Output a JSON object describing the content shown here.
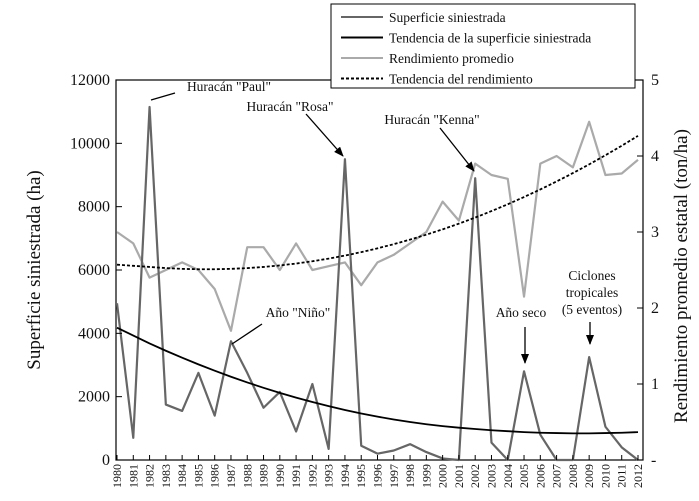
{
  "chart_data": {
    "type": "line",
    "x": [
      1980,
      1981,
      1982,
      1983,
      1984,
      1985,
      1986,
      1987,
      1988,
      1989,
      1990,
      1991,
      1992,
      1993,
      1994,
      1995,
      1996,
      1997,
      1998,
      1999,
      2000,
      2001,
      2002,
      2003,
      2004,
      2005,
      2006,
      2007,
      2008,
      2009,
      2010,
      2011,
      2012
    ],
    "x_tick_labels": [
      "1980",
      "1981",
      "1982",
      "1983",
      "1984",
      "1985",
      "1986",
      "1987",
      "1988",
      "1989",
      "1990",
      "1991",
      "1992",
      "1993",
      "1994",
      "1995",
      "1996",
      "1997",
      "1998",
      "1999",
      "2000",
      "2001",
      "2002",
      "2003",
      "2004",
      "2005",
      "2006",
      "2007",
      "2008",
      "2009",
      "2010",
      "2011",
      "2012"
    ],
    "y_left": {
      "label": "Superficie siniestrada (ha)",
      "lim": [
        0,
        12000
      ],
      "ticks": [
        0,
        2000,
        4000,
        6000,
        8000,
        10000,
        12000
      ],
      "tick_labels": [
        "0",
        "2000",
        "4000",
        "6000",
        "8000",
        "10000",
        "12000"
      ]
    },
    "y_right": {
      "label": "Rendimiento promedio estatal (ton/ha)",
      "lim": [
        0,
        5
      ],
      "ticks": [
        0,
        1,
        2,
        3,
        4,
        5
      ],
      "tick_labels": [
        "-",
        "1",
        "2",
        "3",
        "4",
        "5"
      ]
    },
    "series": [
      {
        "name": "Superficie siniestrada",
        "axis": "left",
        "style": "solid",
        "color": "#666666",
        "values": [
          4950,
          700,
          11150,
          1750,
          1550,
          2750,
          1400,
          3750,
          2750,
          1650,
          2150,
          900,
          2400,
          350,
          9500,
          450,
          200,
          300,
          500,
          250,
          50,
          0,
          8900,
          550,
          0,
          2800,
          800,
          0,
          0,
          3250,
          1050,
          400,
          0
        ]
      },
      {
        "name": "Tendencia de la superficie siniestrada",
        "axis": "left",
        "style": "solid",
        "color": "#000000",
        "values": [
          4180,
          3930,
          3680,
          3450,
          3230,
          3020,
          2820,
          2630,
          2450,
          2280,
          2120,
          1970,
          1830,
          1700,
          1580,
          1470,
          1370,
          1280,
          1200,
          1130,
          1070,
          1020,
          980,
          940,
          910,
          880,
          860,
          850,
          840,
          840,
          850,
          860,
          880
        ]
      },
      {
        "name": "Rendimiento promedio",
        "axis": "right",
        "style": "solid",
        "color": "#aaaaaa",
        "values": [
          3.0,
          2.85,
          2.4,
          2.5,
          2.6,
          2.5,
          2.25,
          1.7,
          2.8,
          2.8,
          2.5,
          2.85,
          2.5,
          2.55,
          2.6,
          2.3,
          2.6,
          2.7,
          2.85,
          3.0,
          3.4,
          3.15,
          3.9,
          3.75,
          3.7,
          2.15,
          3.9,
          4.0,
          3.85,
          4.45,
          3.75,
          3.77,
          3.95
        ]
      },
      {
        "name": "Tendencia del rendimiento",
        "axis": "right",
        "style": "dashed",
        "color": "#000000",
        "values": [
          2.57,
          2.555,
          2.54,
          2.525,
          2.515,
          2.51,
          2.51,
          2.515,
          2.525,
          2.54,
          2.56,
          2.585,
          2.615,
          2.65,
          2.69,
          2.735,
          2.785,
          2.84,
          2.9,
          2.965,
          3.035,
          3.11,
          3.19,
          3.275,
          3.365,
          3.46,
          3.56,
          3.665,
          3.775,
          3.89,
          4.01,
          4.135,
          4.265
        ]
      }
    ],
    "annotations": [
      {
        "id": "paul",
        "lines": [
          "Huracán \"Paul\""
        ],
        "target_year": 1982,
        "target_value": 11150,
        "axis": "left"
      },
      {
        "id": "rosa",
        "lines": [
          "Huracán \"Rosa\""
        ],
        "target_year": 1994,
        "target_value": 9500,
        "axis": "left"
      },
      {
        "id": "kenna",
        "lines": [
          "Huracán \"Kenna\""
        ],
        "target_year": 2002,
        "target_value": 8900,
        "axis": "left"
      },
      {
        "id": "nino",
        "lines": [
          "Año \"Niño\""
        ],
        "target_year": 1987,
        "target_value": 3750,
        "axis": "left"
      },
      {
        "id": "seco",
        "lines": [
          "Año seco"
        ],
        "target_year": 2005,
        "target_value": 2800,
        "axis": "left"
      },
      {
        "id": "ciclones",
        "lines": [
          "Ciclones",
          "tropicales",
          "(5 eventos)"
        ],
        "target_year": 2009,
        "target_value": 3250,
        "axis": "left"
      }
    ],
    "legend": {
      "position": "top-right",
      "framed": true
    },
    "grid": false
  }
}
